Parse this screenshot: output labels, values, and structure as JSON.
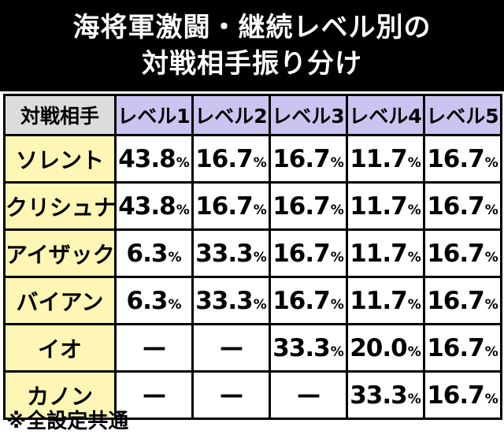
{
  "title": {
    "line1": "海将軍激闘・継続レベル別の",
    "line2": "対戦相手振り分け"
  },
  "table": {
    "corner_label": "対戦相手",
    "levels": [
      "レベル1",
      "レベル2",
      "レベル3",
      "レベル4",
      "レベル5"
    ],
    "percent_sign": "%",
    "rows": [
      {
        "opponent": "ソレント",
        "values": [
          "43.8",
          "16.7",
          "16.7",
          "11.7",
          "16.7"
        ]
      },
      {
        "opponent": "クリシュナ",
        "values": [
          "43.8",
          "16.7",
          "16.7",
          "11.7",
          "16.7"
        ]
      },
      {
        "opponent": "アイザック",
        "values": [
          "6.3",
          "33.3",
          "16.7",
          "11.7",
          "16.7"
        ]
      },
      {
        "opponent": "バイアン",
        "values": [
          "6.3",
          "33.3",
          "16.7",
          "11.7",
          "16.7"
        ]
      },
      {
        "opponent": "イオ",
        "values": [
          "—",
          "—",
          "33.3",
          "20.0",
          "16.7"
        ]
      },
      {
        "opponent": "カノン",
        "values": [
          "—",
          "—",
          "—",
          "33.3",
          "16.7"
        ]
      }
    ]
  },
  "footnote": "※全設定共通",
  "colors": {
    "title_bg": "#000000",
    "corner_bg": "#dcdcdc",
    "level_header_bg": "#c9c5f0",
    "opponent_bg": "#fdf6b4"
  }
}
